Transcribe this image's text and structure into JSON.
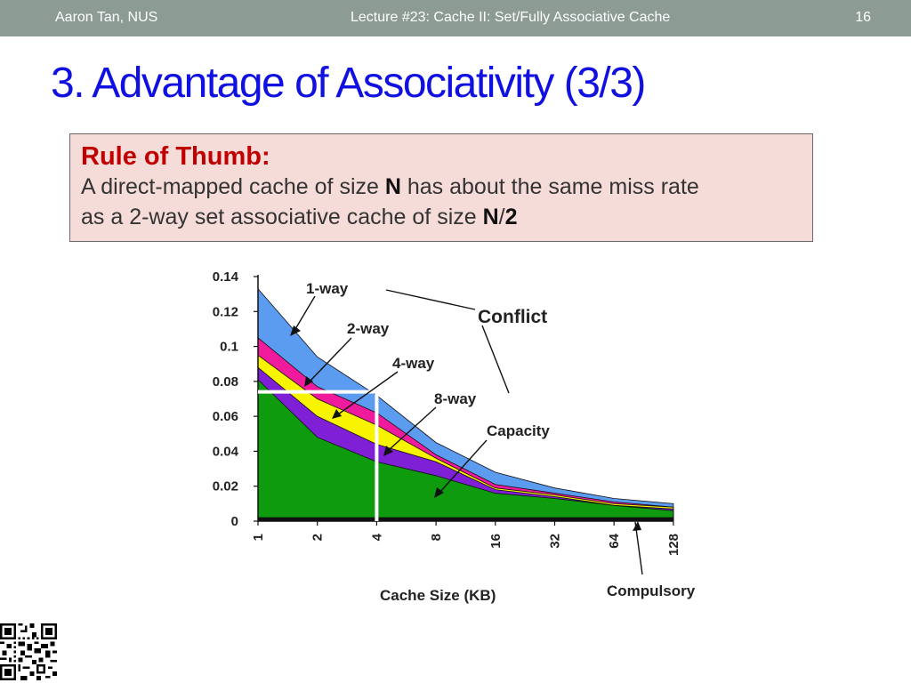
{
  "header": {
    "author": "Aaron Tan, NUS",
    "lecture": "Lecture #23: Cache II: Set/Fully Associative Cache",
    "page_number": "16"
  },
  "slide": {
    "title": "3. Advantage of Associativity (3/3)"
  },
  "rule_box": {
    "heading": "Rule of Thumb:",
    "line1_a": "A direct-mapped cache of size ",
    "line1_b": "N",
    "line1_c": " has about the same miss rate",
    "line2_a": "as a 2-way set associative cache of size ",
    "line2_b": "N",
    "line2_c": "/",
    "line2_d": "2"
  },
  "chart_data": {
    "type": "area",
    "xlabel": "Cache Size (KB)",
    "ylabel": "",
    "x_ticks": [
      "1",
      "2",
      "4",
      "8",
      "16",
      "32",
      "64",
      "128"
    ],
    "ylim": [
      0,
      0.14
    ],
    "y_ticks": [
      "0",
      "0.02",
      "0.04",
      "0.06",
      "0.08",
      "0.1",
      "0.12",
      "0.14"
    ],
    "grid": false,
    "series": [
      {
        "name": "1-way",
        "color": "#5b9bf0",
        "values": [
          0.133,
          0.094,
          0.072,
          0.045,
          0.028,
          0.019,
          0.013,
          0.01
        ]
      },
      {
        "name": "2-way",
        "color": "#ef1b9c",
        "values": [
          0.105,
          0.077,
          0.062,
          0.038,
          0.021,
          0.016,
          0.011,
          0.008
        ]
      },
      {
        "name": "4-way",
        "color": "#f8f400",
        "values": [
          0.095,
          0.07,
          0.055,
          0.036,
          0.019,
          0.015,
          0.01,
          0.008
        ]
      },
      {
        "name": "8-way",
        "color": "#7f1fd6",
        "values": [
          0.088,
          0.06,
          0.044,
          0.034,
          0.018,
          0.014,
          0.009,
          0.007
        ]
      },
      {
        "name": "Capacity",
        "color": "#0e9b0e",
        "values": [
          0.081,
          0.048,
          0.034,
          0.026,
          0.016,
          0.013,
          0.009,
          0.006
        ]
      },
      {
        "name": "Compulsory",
        "color": "#101010",
        "values": [
          0.002,
          0.002,
          0.002,
          0.002,
          0.002,
          0.002,
          0.002,
          0.002
        ]
      }
    ],
    "annotations": {
      "conflict": "Conflict",
      "capacity": "Capacity",
      "compulsory": "Compulsory",
      "one_way": "1-way",
      "two_way": "2-way",
      "four_way": "4-way",
      "eight_way": "8-way"
    },
    "highlight": {
      "x": "4",
      "y": 0.074,
      "color": "#ffffff"
    }
  }
}
